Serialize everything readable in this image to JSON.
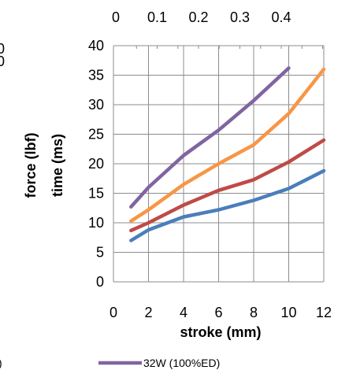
{
  "chart_data": {
    "type": "line",
    "title": "",
    "xlabel": "stroke (mm)",
    "ylabel": "time (ms)",
    "ylabel_secondary": "force (lbf)",
    "xlim": [
      0,
      12
    ],
    "ylim": [
      0,
      40
    ],
    "xticks": [
      "0",
      "2",
      "4",
      "6",
      "8",
      "10",
      "12"
    ],
    "yticks": [
      "0",
      "5",
      "10",
      "15",
      "20",
      "25",
      "30",
      "35",
      "40"
    ],
    "top_axis_ticks": [
      "0",
      "0.1",
      "0.2",
      "0.3",
      "0.4"
    ],
    "left_clipped_ticks": [
      "0",
      "0"
    ],
    "grid": true,
    "legend_position": "bottom",
    "legend_clipped_fragment": ")",
    "series": [
      {
        "name": "",
        "color": "#4a7ebb",
        "x": [
          1,
          2,
          4,
          6,
          8,
          10,
          12
        ],
        "values": [
          7.0,
          8.8,
          11.0,
          12.2,
          13.8,
          15.8,
          18.8
        ]
      },
      {
        "name": "",
        "color": "#be4b48",
        "x": [
          1,
          2,
          4,
          6,
          8,
          10,
          12
        ],
        "values": [
          8.7,
          10.0,
          13.0,
          15.5,
          17.3,
          20.3,
          24.0
        ]
      },
      {
        "name": "",
        "color": "#f79646",
        "x": [
          1,
          2,
          4,
          6,
          8,
          10,
          12
        ],
        "values": [
          10.3,
          12.2,
          16.5,
          20.0,
          23.2,
          28.5,
          36.0
        ]
      },
      {
        "name": "32W (100%ED)",
        "color": "#8064a2",
        "x": [
          1,
          2,
          4,
          6,
          8,
          10
        ],
        "values": [
          12.7,
          16.0,
          21.4,
          25.7,
          30.7,
          36.2
        ]
      }
    ]
  }
}
